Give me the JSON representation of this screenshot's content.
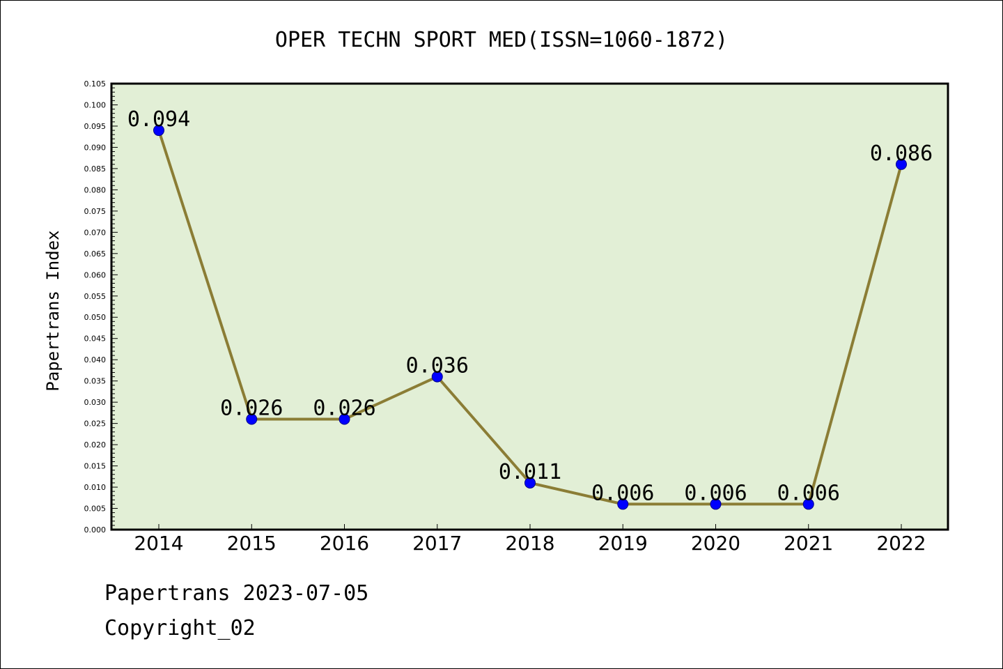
{
  "chart_data": {
    "type": "line",
    "title": "OPER TECHN SPORT MED(ISSN=1060-1872)",
    "xlabel": "",
    "ylabel": "Papertrans Index",
    "categories": [
      "2014",
      "2015",
      "2016",
      "2017",
      "2018",
      "2019",
      "2020",
      "2021",
      "2022"
    ],
    "series": [
      {
        "values": [
          0.094,
          0.026,
          0.026,
          0.036,
          0.011,
          0.006,
          0.006,
          0.006,
          0.086
        ],
        "labels": [
          "0.094",
          "0.026",
          "0.026",
          "0.036",
          "0.011",
          "0.006",
          "0.006",
          "0.006",
          "0.086"
        ]
      }
    ],
    "ylim": [
      0,
      0.105
    ],
    "yticks": [
      "0.000",
      "0.005",
      "0.010",
      "0.015",
      "0.020",
      "0.025",
      "0.030",
      "0.035",
      "0.040",
      "0.045",
      "0.050",
      "0.055",
      "0.060",
      "0.065",
      "0.070",
      "0.075",
      "0.080",
      "0.085",
      "0.090",
      "0.095",
      "0.100",
      "0.105"
    ],
    "grid": false,
    "colors": {
      "plot_background": "#e2efd6",
      "line": "#8b7d35",
      "marker": "#0000ff",
      "marker_edge": "#00008b"
    }
  },
  "footer": {
    "line1": "Papertrans 2023-07-05",
    "line2": "Copyright_02"
  }
}
